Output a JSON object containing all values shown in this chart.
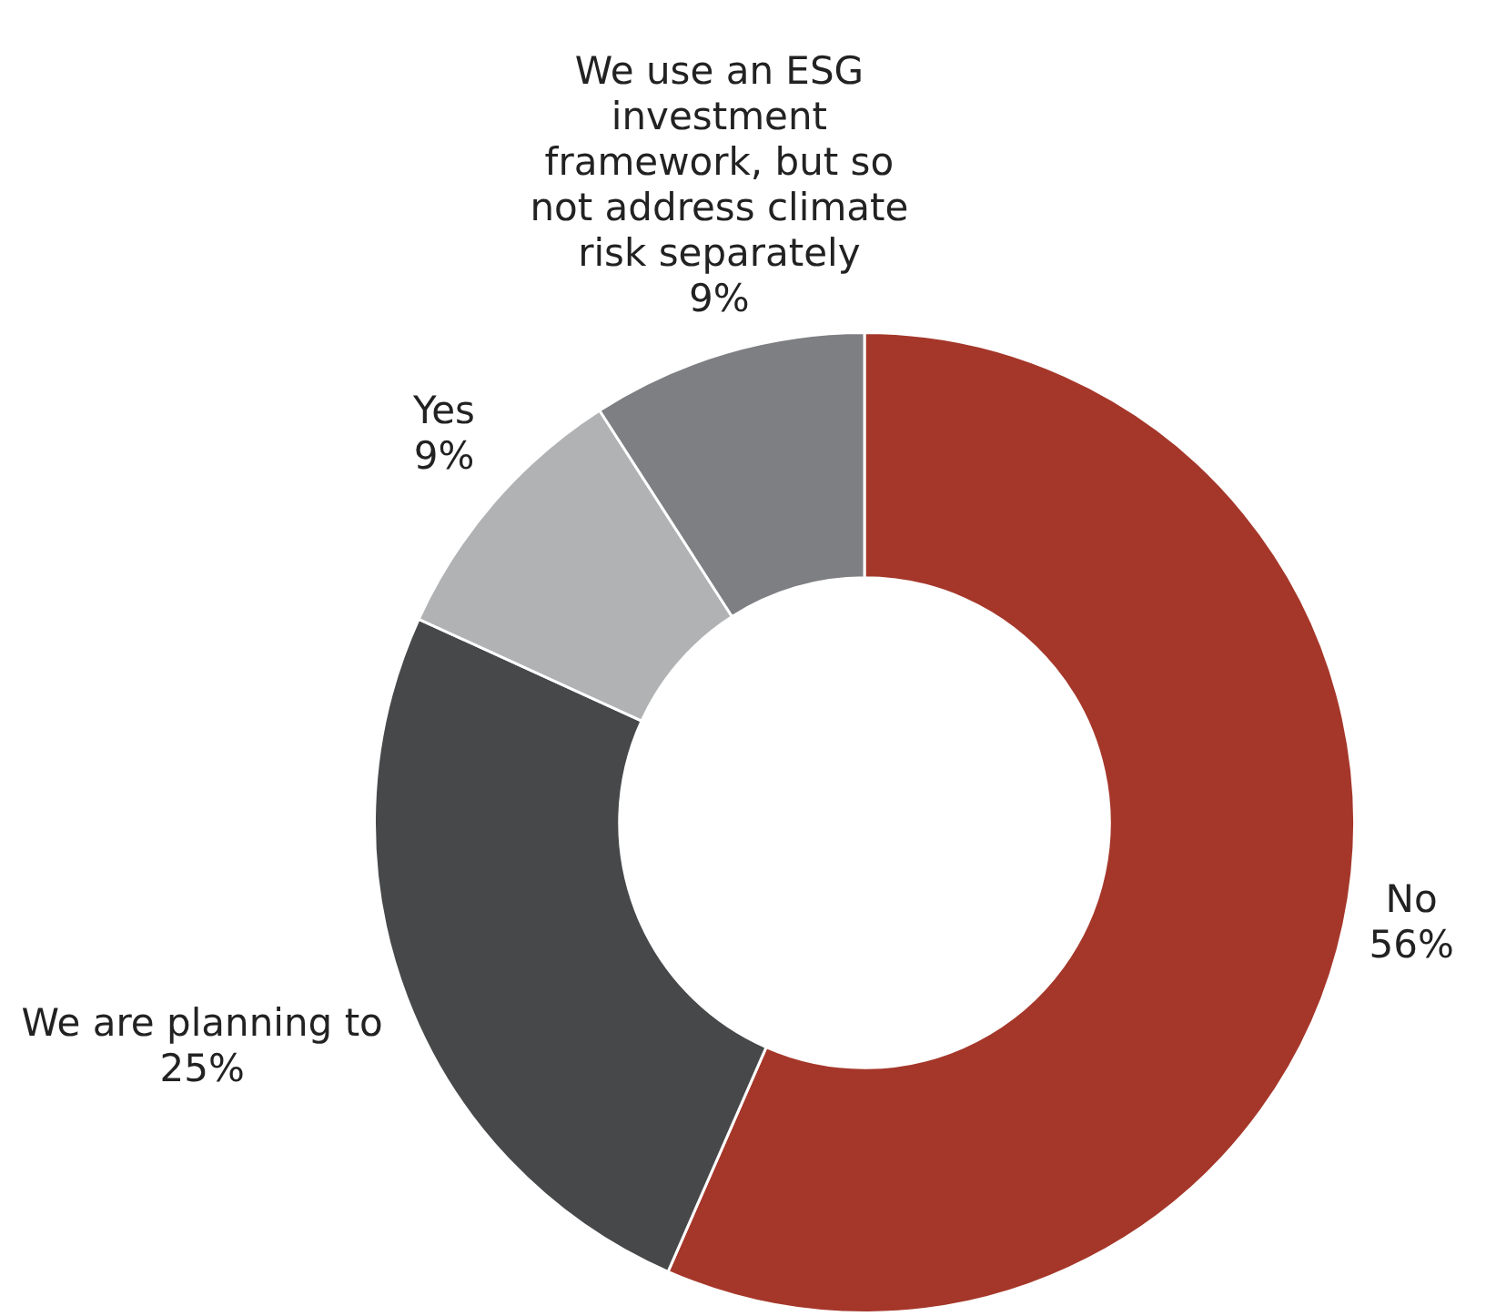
{
  "chart_data": {
    "type": "donut",
    "categories": [
      "No",
      "We are planning to",
      "Yes",
      "We use an ESG investment framework, but so not address climate risk separately"
    ],
    "values": [
      56,
      25,
      9,
      9
    ],
    "colors": [
      "#a5372a",
      "#474849",
      "#b1b2b4",
      "#7e7f83"
    ],
    "value_labels": [
      "56%",
      "25%",
      "9%",
      "9%"
    ],
    "legend": false
  }
}
